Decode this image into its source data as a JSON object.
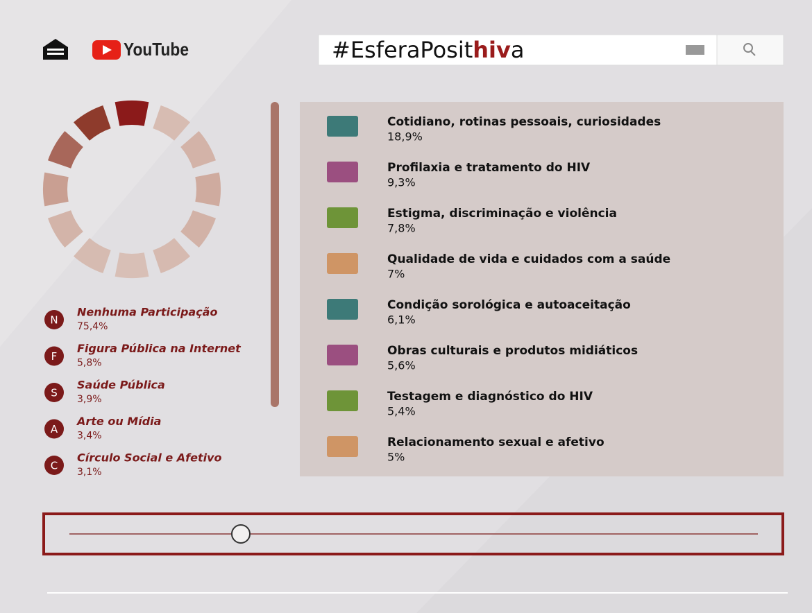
{
  "header": {
    "logo": "YouTube",
    "search": [
      "#EsferaPosit",
      "hiv",
      "a"
    ]
  },
  "participation": [
    {
      "letter": "N",
      "label": "Nenhuma Participação",
      "value": "75,4%"
    },
    {
      "letter": "F",
      "label": "Figura Pública na Internet",
      "value": "5,8%"
    },
    {
      "letter": "S",
      "label": "Saúde Pública",
      "value": "3,9%"
    },
    {
      "letter": "A",
      "label": "Arte ou Mídia",
      "value": "3,4%"
    },
    {
      "letter": "C",
      "label": "Círculo Social e Afetivo",
      "value": "3,1%"
    }
  ],
  "topics": [
    {
      "label": "Cotidiano, rotinas pessoais, curiosidades",
      "value": "18,9%",
      "color": "#3d7a78"
    },
    {
      "label": "Profilaxia e tratamento do HIV",
      "value": "9,3%",
      "color": "#9b4f80"
    },
    {
      "label": "Estigma, discriminação e violência",
      "value": "7,8%",
      "color": "#6e9438"
    },
    {
      "label": "Qualidade de vida e cuidados com a saúde",
      "value": "7%",
      "color": "#cf9565"
    },
    {
      "label": "Condição sorológica e autoaceitação",
      "value": "6,1%",
      "color": "#3d7a78"
    },
    {
      "label": "Obras culturais e produtos midiáticos",
      "value": "5,6%",
      "color": "#9b4f80"
    },
    {
      "label": "Testagem e diagnóstico do HIV",
      "value": "5,4%",
      "color": "#6e9438"
    },
    {
      "label": "Relacionamento sexual e afetivo",
      "value": "5%",
      "color": "#cf9565"
    }
  ]
}
